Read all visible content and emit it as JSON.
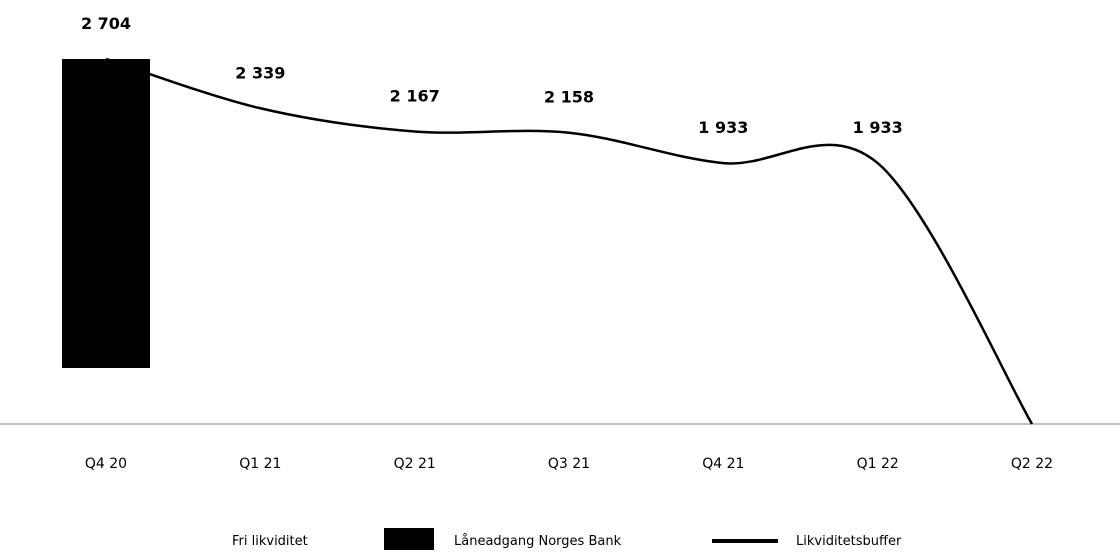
{
  "chart_data": {
    "type": "bar",
    "categories": [
      "Q4 20",
      "Q1 21",
      "Q2 21",
      "Q3 21",
      "Q4 21",
      "Q1 22",
      "Q2 22"
    ],
    "series": [
      {
        "name": "Fri likviditet",
        "type": "bar",
        "color": "#ffffff",
        "values": [
          null,
          null,
          null,
          null,
          null,
          null,
          null
        ]
      },
      {
        "name": "Låneadgang Norges Bank",
        "type": "bar",
        "color": "#000000",
        "values": [
          2704,
          null,
          null,
          null,
          null,
          null,
          null
        ]
      },
      {
        "name": "Likviditetsbuffer",
        "type": "line",
        "color": "#000000",
        "values": [
          2704,
          2339,
          2167,
          2158,
          1933,
          1933,
          0
        ]
      }
    ],
    "data_labels": [
      "2 704",
      "2 339",
      "2 167",
      "2 158",
      "1 933",
      "1 933",
      ""
    ],
    "legend_position": "bottom",
    "grid": false
  }
}
